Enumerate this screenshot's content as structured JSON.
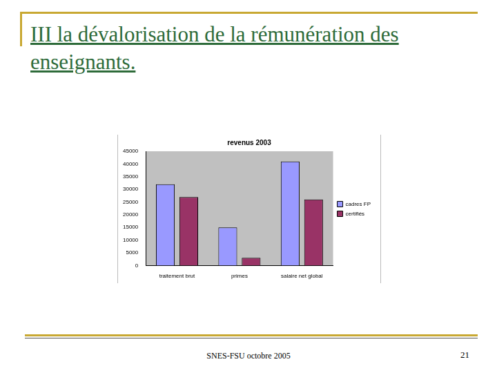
{
  "slide_title": "III    la dévalorisation de la rémunération des enseignants.",
  "footer": "SNES-FSU octobre 2005",
  "page_number": "21",
  "chart_data": {
    "type": "bar",
    "title": "revenus 2003",
    "categories": [
      "traitement brut",
      "primes",
      "salaire net global"
    ],
    "series": [
      {
        "name": "cadres FP",
        "color": "#9999ff",
        "values": [
          32000,
          15000,
          41000
        ]
      },
      {
        "name": "certifiés",
        "color": "#993366",
        "values": [
          27000,
          3000,
          26000
        ]
      }
    ],
    "ylim": [
      0,
      45000
    ],
    "yticks": [
      0,
      5000,
      10000,
      15000,
      20000,
      25000,
      30000,
      35000,
      40000,
      45000
    ],
    "grid": false,
    "legend": "right"
  }
}
